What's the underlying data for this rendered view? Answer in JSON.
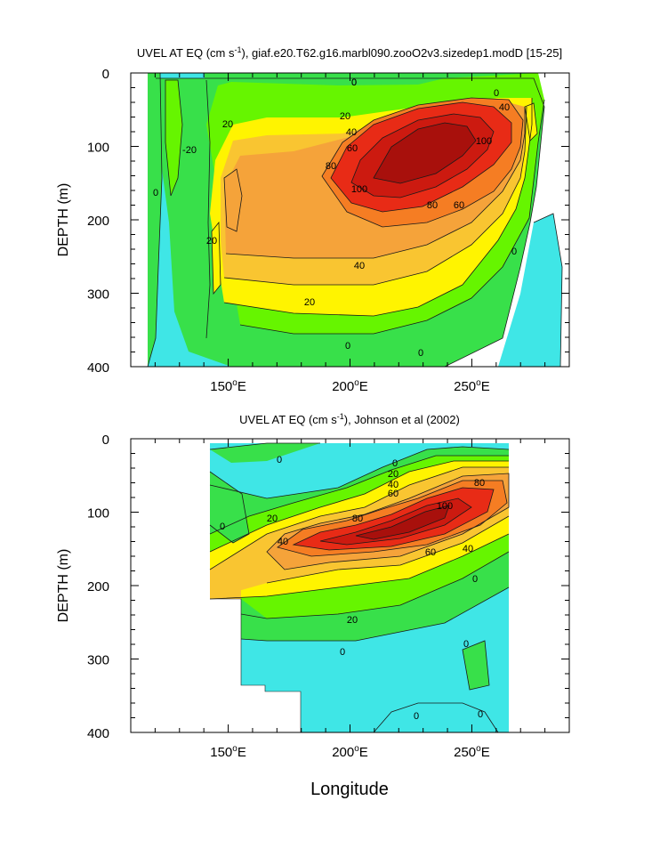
{
  "chart_data": [
    {
      "type": "contour",
      "title_main": "UVEL AT EQ (cm s",
      "title_sup": "-1",
      "title_rest": "), giaf.e20.T62.g16.marbl090.zooO2v3.sizedep1.modD [15-25]",
      "ylabel": "DEPTH (m)",
      "xlabel": "",
      "x_ticks": [
        {
          "value": 150,
          "label": "150"
        },
        {
          "value": 200,
          "label": "200"
        },
        {
          "value": 250,
          "label": "250"
        }
      ],
      "x_tick_suffix": "E",
      "y_ticks": [
        "0",
        "100",
        "200",
        "300",
        "400"
      ],
      "xlim": [
        110,
        290
      ],
      "ylim": [
        0,
        400
      ],
      "y_reversed": true,
      "contour_interval": 20,
      "levels": [
        -20,
        0,
        20,
        40,
        60,
        80,
        100
      ],
      "contour_labels": [
        "0",
        "0",
        "20",
        "20",
        "40",
        "40",
        "60",
        "60",
        "80",
        "80",
        "100",
        "100",
        "-20",
        "20",
        "0",
        "0",
        "0",
        "0",
        "40",
        "20",
        "0"
      ],
      "max_core": {
        "lon": 230,
        "depth": 140,
        "value": 120
      }
    },
    {
      "type": "contour",
      "title_main": "UVEL AT EQ (cm s",
      "title_sup": "-1",
      "title_rest": "), Johnson et al (2002)",
      "ylabel": "DEPTH (m)",
      "xlabel": "Longitude",
      "x_ticks": [
        {
          "value": 150,
          "label": "150"
        },
        {
          "value": 200,
          "label": "200"
        },
        {
          "value": 250,
          "label": "250"
        }
      ],
      "x_tick_suffix": "E",
      "y_ticks": [
        "0",
        "100",
        "200",
        "300",
        "400"
      ],
      "xlim": [
        110,
        290
      ],
      "ylim": [
        0,
        400
      ],
      "y_reversed": true,
      "contour_interval": 20,
      "levels": [
        -20,
        0,
        20,
        40,
        60,
        80,
        100
      ],
      "contour_labels": [
        "0",
        "0",
        "0",
        "20",
        "20",
        "40",
        "40",
        "40",
        "60",
        "60",
        "80",
        "80",
        "100",
        "0",
        "20",
        "0",
        "0",
        "0",
        "0"
      ],
      "max_core": {
        "lon": 230,
        "depth": 110,
        "value": 110
      }
    }
  ],
  "colors": {
    "cyan": "#3fe6e6",
    "lightgreen": "#38e04a",
    "green": "#66f500",
    "yellow": "#fff400",
    "lightorange": "#f9c531",
    "orange": "#f5a33a",
    "deeporange": "#f57d23",
    "red": "#e82b16",
    "darkred": "#cc1a10",
    "maroon": "#a8100c",
    "stroke": "#1a1a1a"
  }
}
